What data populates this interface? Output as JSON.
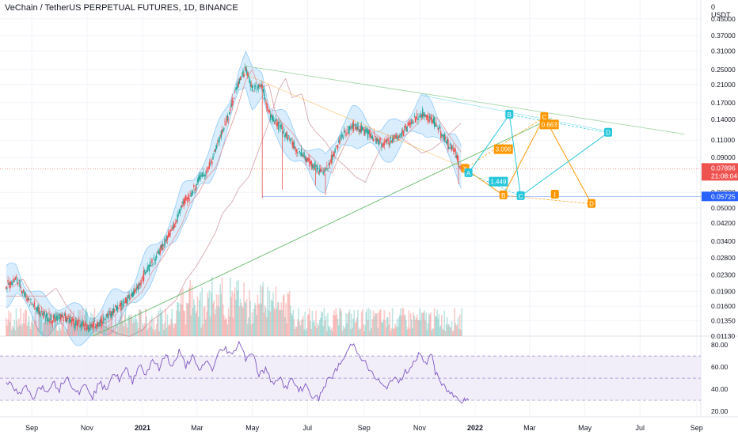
{
  "header": {
    "title": "VeChain / TetherUS PERPETUAL FUTURES, 1D, BINANCE",
    "currency": "USDT",
    "top_value": "0"
  },
  "colors": {
    "up": "#26a69a",
    "down": "#ef5350",
    "band_fill": "#bbdefb",
    "band_line": "#90caf9",
    "ma": "#e0a0a0",
    "pattern_teal": "#26c6da",
    "pattern_orange": "#ff9800",
    "trend_green": "#66bb6a",
    "rsi_line": "#7e57c2",
    "rsi_band": "#ede7f6",
    "hline": "#2962ff",
    "price_red": "#ef5350"
  },
  "chart_data": {
    "type": "candlestick",
    "price_axis": {
      "scale": "log",
      "range": [
        0.0113,
        0.56
      ],
      "ticks": [
        "0.45000",
        "0.37000",
        "0.31000",
        "0.25000",
        "0.21000",
        "0.17000",
        "0.14000",
        "0.11000",
        "0.09000",
        "0.06000",
        "0.05000",
        "0.04200",
        "0.03400",
        "0.02800",
        "0.02300",
        "0.01900",
        "0.01600",
        "0.01350",
        "0.01130"
      ]
    },
    "current_price": {
      "value": "0.07896",
      "countdown": "21:08:04"
    },
    "horizontal_level": {
      "value": "0.05725"
    },
    "time_axis": {
      "ticks": [
        {
          "label": "Sep",
          "year": 2020.667
        },
        {
          "label": "Nov",
          "year": 2020.833
        },
        {
          "label": "2021",
          "year": 2021.0
        },
        {
          "label": "Mar",
          "year": 2021.164
        },
        {
          "label": "May",
          "year": 2021.33
        },
        {
          "label": "Jul",
          "year": 2021.496
        },
        {
          "label": "Sep",
          "year": 2021.666
        },
        {
          "label": "Nov",
          "year": 2021.833
        },
        {
          "label": "2022",
          "year": 2022.0
        },
        {
          "label": "Mar",
          "year": 2022.164
        },
        {
          "label": "May",
          "year": 2022.33
        },
        {
          "label": "Jul",
          "year": 2022.496
        },
        {
          "label": "Sep",
          "year": 2022.666
        }
      ]
    },
    "price_path": [
      [
        2020.59,
        0.02
      ],
      [
        2020.62,
        0.022
      ],
      [
        2020.65,
        0.018
      ],
      [
        2020.68,
        0.0155
      ],
      [
        2020.72,
        0.0138
      ],
      [
        2020.76,
        0.0142
      ],
      [
        2020.8,
        0.013
      ],
      [
        2020.84,
        0.0125
      ],
      [
        2020.88,
        0.0135
      ],
      [
        2020.91,
        0.0152
      ],
      [
        2020.94,
        0.0165
      ],
      [
        2020.98,
        0.019
      ],
      [
        2021.01,
        0.024
      ],
      [
        2021.04,
        0.028
      ],
      [
        2021.07,
        0.034
      ],
      [
        2021.1,
        0.042
      ],
      [
        2021.12,
        0.052
      ],
      [
        2021.15,
        0.06
      ],
      [
        2021.17,
        0.07
      ],
      [
        2021.2,
        0.08
      ],
      [
        2021.23,
        0.11
      ],
      [
        2021.26,
        0.15
      ],
      [
        2021.29,
        0.22
      ],
      [
        2021.31,
        0.25
      ],
      [
        2021.33,
        0.2
      ],
      [
        2021.36,
        0.21
      ],
      [
        2021.38,
        0.15
      ],
      [
        2021.4,
        0.135
      ],
      [
        2021.43,
        0.12
      ],
      [
        2021.46,
        0.1
      ],
      [
        2021.49,
        0.09
      ],
      [
        2021.52,
        0.08
      ],
      [
        2021.55,
        0.075
      ],
      [
        2021.57,
        0.09
      ],
      [
        2021.6,
        0.115
      ],
      [
        2021.63,
        0.13
      ],
      [
        2021.66,
        0.125
      ],
      [
        2021.69,
        0.115
      ],
      [
        2021.72,
        0.105
      ],
      [
        2021.75,
        0.11
      ],
      [
        2021.78,
        0.12
      ],
      [
        2021.81,
        0.135
      ],
      [
        2021.84,
        0.15
      ],
      [
        2021.87,
        0.14
      ],
      [
        2021.89,
        0.125
      ],
      [
        2021.92,
        0.105
      ],
      [
        2021.94,
        0.095
      ],
      [
        2021.96,
        0.079
      ]
    ],
    "spikes": [
      {
        "year": 2021.36,
        "low": 0.056
      },
      {
        "year": 2021.42,
        "low": 0.062
      },
      {
        "year": 2021.52,
        "low": 0.065
      },
      {
        "year": 2021.55,
        "low": 0.058
      },
      {
        "year": 2021.95,
        "low": 0.066
      }
    ],
    "harmonic_pattern_teal": {
      "points": [
        {
          "label": "A",
          "year": 2021.98,
          "price": 0.075
        },
        {
          "label": "B",
          "year": 2022.103,
          "price": 0.148
        },
        {
          "label": "C",
          "year": 2022.137,
          "price": 0.0575
        },
        {
          "label": "D",
          "year": 2022.4,
          "price": 0.12
        }
      ],
      "ratio": {
        "label": "1.449",
        "year": 2022.07,
        "price": 0.068
      }
    },
    "harmonic_pattern_orange": {
      "points": [
        {
          "label": "X",
          "year": 2021.97,
          "price": 0.079
        },
        {
          "label": "B",
          "year": 2022.085,
          "price": 0.058
        },
        {
          "label": "C",
          "year": 2022.208,
          "price": 0.144
        },
        {
          "label": "D",
          "year": 2022.35,
          "price": 0.0525
        }
      ],
      "marker": {
        "label": "I",
        "year": 2022.24,
        "price": 0.0585
      },
      "ratios": [
        {
          "label": "3.096",
          "year": 2022.085,
          "price": 0.099
        },
        {
          "label": "0.663",
          "year": 2022.223,
          "price": 0.132
        }
      ]
    },
    "rsi": {
      "axis": [
        "80.00",
        "60.00",
        "40.00",
        "20.00"
      ],
      "range": [
        15,
        88
      ],
      "upper": 70,
      "middle": 50,
      "lower": 30,
      "path": [
        [
          2020.59,
          48
        ],
        [
          2020.61,
          41
        ],
        [
          2020.63,
          35
        ],
        [
          2020.65,
          42
        ],
        [
          2020.67,
          31
        ],
        [
          2020.69,
          44
        ],
        [
          2020.71,
          38
        ],
        [
          2020.73,
          47
        ],
        [
          2020.75,
          40
        ],
        [
          2020.77,
          52
        ],
        [
          2020.79,
          43
        ],
        [
          2020.81,
          37
        ],
        [
          2020.83,
          45
        ],
        [
          2020.85,
          33
        ],
        [
          2020.87,
          46
        ],
        [
          2020.89,
          39
        ],
        [
          2020.91,
          55
        ],
        [
          2020.93,
          49
        ],
        [
          2020.95,
          58
        ],
        [
          2020.97,
          47
        ],
        [
          2020.99,
          63
        ],
        [
          2021.01,
          53
        ],
        [
          2021.03,
          68
        ],
        [
          2021.05,
          58
        ],
        [
          2021.07,
          72
        ],
        [
          2021.09,
          60
        ],
        [
          2021.11,
          74
        ],
        [
          2021.13,
          61
        ],
        [
          2021.15,
          70
        ],
        [
          2021.17,
          55
        ],
        [
          2021.19,
          66
        ],
        [
          2021.21,
          58
        ],
        [
          2021.23,
          73
        ],
        [
          2021.25,
          77
        ],
        [
          2021.27,
          70
        ],
        [
          2021.29,
          84
        ],
        [
          2021.31,
          68
        ],
        [
          2021.33,
          74
        ],
        [
          2021.35,
          53
        ],
        [
          2021.37,
          58
        ],
        [
          2021.39,
          45
        ],
        [
          2021.41,
          52
        ],
        [
          2021.43,
          41
        ],
        [
          2021.45,
          49
        ],
        [
          2021.47,
          38
        ],
        [
          2021.49,
          44
        ],
        [
          2021.51,
          34
        ],
        [
          2021.53,
          31
        ],
        [
          2021.55,
          45
        ],
        [
          2021.57,
          52
        ],
        [
          2021.59,
          61
        ],
        [
          2021.61,
          70
        ],
        [
          2021.63,
          82
        ],
        [
          2021.65,
          73
        ],
        [
          2021.67,
          63
        ],
        [
          2021.69,
          54
        ],
        [
          2021.71,
          47
        ],
        [
          2021.73,
          40
        ],
        [
          2021.75,
          50
        ],
        [
          2021.77,
          46
        ],
        [
          2021.79,
          55
        ],
        [
          2021.81,
          62
        ],
        [
          2021.83,
          72
        ],
        [
          2021.85,
          62
        ],
        [
          2021.87,
          73
        ],
        [
          2021.88,
          55
        ],
        [
          2021.9,
          44
        ],
        [
          2021.92,
          38
        ],
        [
          2021.94,
          33
        ],
        [
          2021.96,
          30
        ],
        [
          2021.97,
          32
        ],
        [
          2021.98,
          30
        ]
      ]
    }
  }
}
